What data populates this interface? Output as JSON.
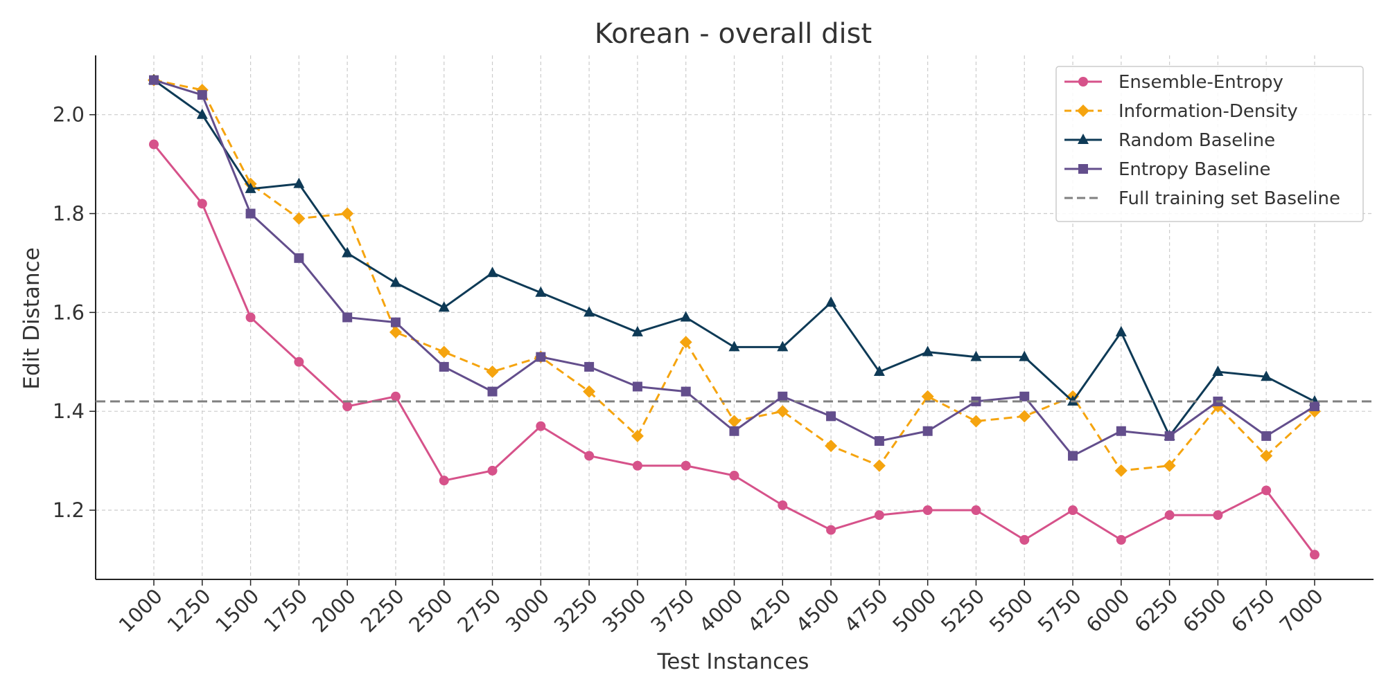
{
  "chart_data": {
    "type": "line",
    "title": "Korean - overall dist",
    "xlabel": "Test Instances",
    "ylabel": "Edit Distance",
    "categories": [
      "1000",
      "1250",
      "1500",
      "1750",
      "2000",
      "2250",
      "2500",
      "2750",
      "3000",
      "3250",
      "3500",
      "3750",
      "4000",
      "4250",
      "4500",
      "4750",
      "5000",
      "5250",
      "5500",
      "5750",
      "6000",
      "6250",
      "6500",
      "6750",
      "7000"
    ],
    "ylim": [
      1.06,
      2.12
    ],
    "yticks": [
      1.2,
      1.4,
      1.6,
      1.8,
      2.0
    ],
    "ytick_labels": [
      "1.2",
      "1.4",
      "1.6",
      "1.8",
      "2.0"
    ],
    "grid": true,
    "legend_position": "top-right",
    "series": [
      {
        "name": "Ensemble-Entropy",
        "color": "#d6528a",
        "marker": "circle",
        "dash": "solid",
        "values": [
          1.94,
          1.82,
          1.59,
          1.5,
          1.41,
          1.43,
          1.26,
          1.28,
          1.37,
          1.31,
          1.29,
          1.29,
          1.27,
          1.21,
          1.16,
          1.19,
          1.2,
          1.2,
          1.14,
          1.2,
          1.14,
          1.19,
          1.19,
          1.24,
          1.11
        ]
      },
      {
        "name": "Information-Density",
        "color": "#f5a40f",
        "marker": "diamond",
        "dash": "dashed",
        "values": [
          2.07,
          2.05,
          1.86,
          1.79,
          1.8,
          1.56,
          1.52,
          1.48,
          1.51,
          1.44,
          1.35,
          1.54,
          1.38,
          1.4,
          1.33,
          1.29,
          1.43,
          1.38,
          1.39,
          1.43,
          1.28,
          1.29,
          1.41,
          1.31,
          1.4
        ]
      },
      {
        "name": "Random Baseline",
        "color": "#0e3a56",
        "marker": "triangle",
        "dash": "solid",
        "values": [
          2.07,
          2.0,
          1.85,
          1.86,
          1.72,
          1.66,
          1.61,
          1.68,
          1.64,
          1.6,
          1.56,
          1.59,
          1.53,
          1.53,
          1.62,
          1.48,
          1.52,
          1.51,
          1.51,
          1.42,
          1.56,
          1.35,
          1.48,
          1.47,
          1.42
        ]
      },
      {
        "name": "Entropy Baseline",
        "color": "#634e8c",
        "marker": "square",
        "dash": "solid",
        "values": [
          2.07,
          2.04,
          1.8,
          1.71,
          1.59,
          1.58,
          1.49,
          1.44,
          1.51,
          1.49,
          1.45,
          1.44,
          1.36,
          1.43,
          1.39,
          1.34,
          1.36,
          1.42,
          1.43,
          1.31,
          1.36,
          1.35,
          1.42,
          1.35,
          1.41
        ]
      },
      {
        "name": "Full training set Baseline",
        "color": "#808080",
        "marker": "none",
        "dash": "dashed",
        "constant": 1.42
      }
    ]
  }
}
